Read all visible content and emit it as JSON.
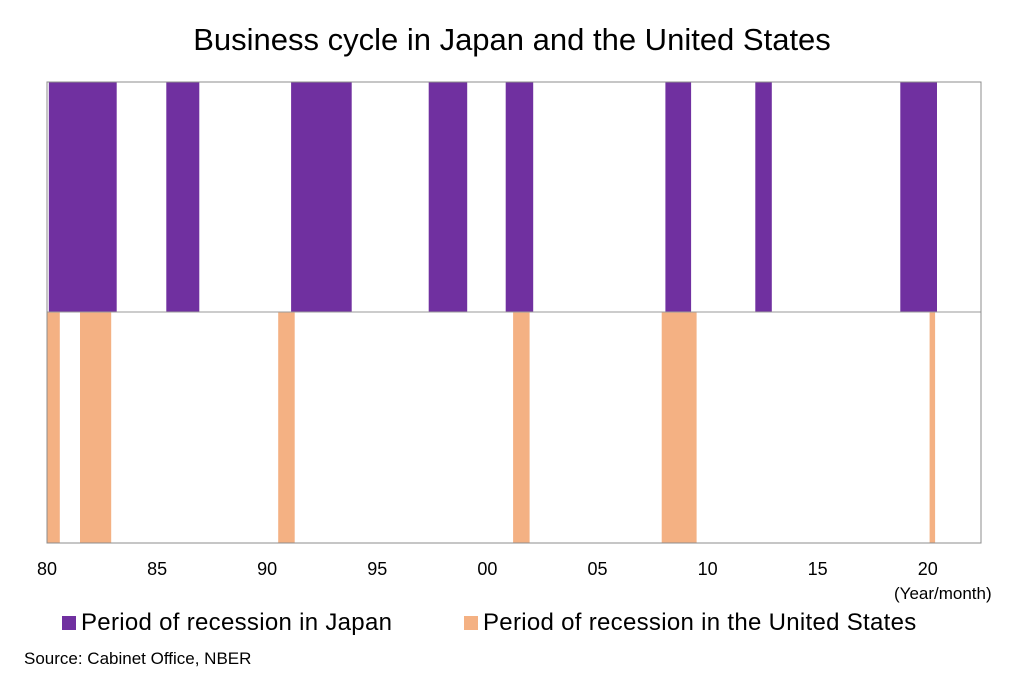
{
  "chart_data": {
    "type": "area",
    "title": "Business cycle in Japan and the United States",
    "xlabel_unit": "(Year/month)",
    "xlim": [
      "1980-01",
      "2022-06"
    ],
    "x_ticks": [
      "80",
      "85",
      "90",
      "95",
      "00",
      "05",
      "10",
      "15",
      "20"
    ],
    "x_tick_years": [
      1980,
      1985,
      1990,
      1995,
      2000,
      2005,
      2010,
      2015,
      2020
    ],
    "series": [
      {
        "name": "Period of recession in Japan",
        "color": "#7030a0",
        "periods": [
          [
            "1980-02",
            "1983-02"
          ],
          [
            "1985-06",
            "1986-11"
          ],
          [
            "1991-02",
            "1993-10"
          ],
          [
            "1997-05",
            "1999-01"
          ],
          [
            "2000-11",
            "2002-01"
          ],
          [
            "2008-02",
            "2009-03"
          ],
          [
            "2012-03",
            "2012-11"
          ],
          [
            "2018-10",
            "2020-05"
          ]
        ]
      },
      {
        "name": "Period of recession in the United States",
        "color": "#f4b183",
        "periods": [
          [
            "1980-01",
            "1980-07"
          ],
          [
            "1981-07",
            "1982-11"
          ],
          [
            "1990-07",
            "1991-03"
          ],
          [
            "2001-03",
            "2001-11"
          ],
          [
            "2007-12",
            "2009-06"
          ],
          [
            "2020-02",
            "2020-04"
          ]
        ]
      }
    ]
  },
  "legend": {
    "japan_label": "Period of recession in Japan",
    "us_label": "Period of recession in the United States"
  },
  "source": "Source: Cabinet Office, NBER"
}
